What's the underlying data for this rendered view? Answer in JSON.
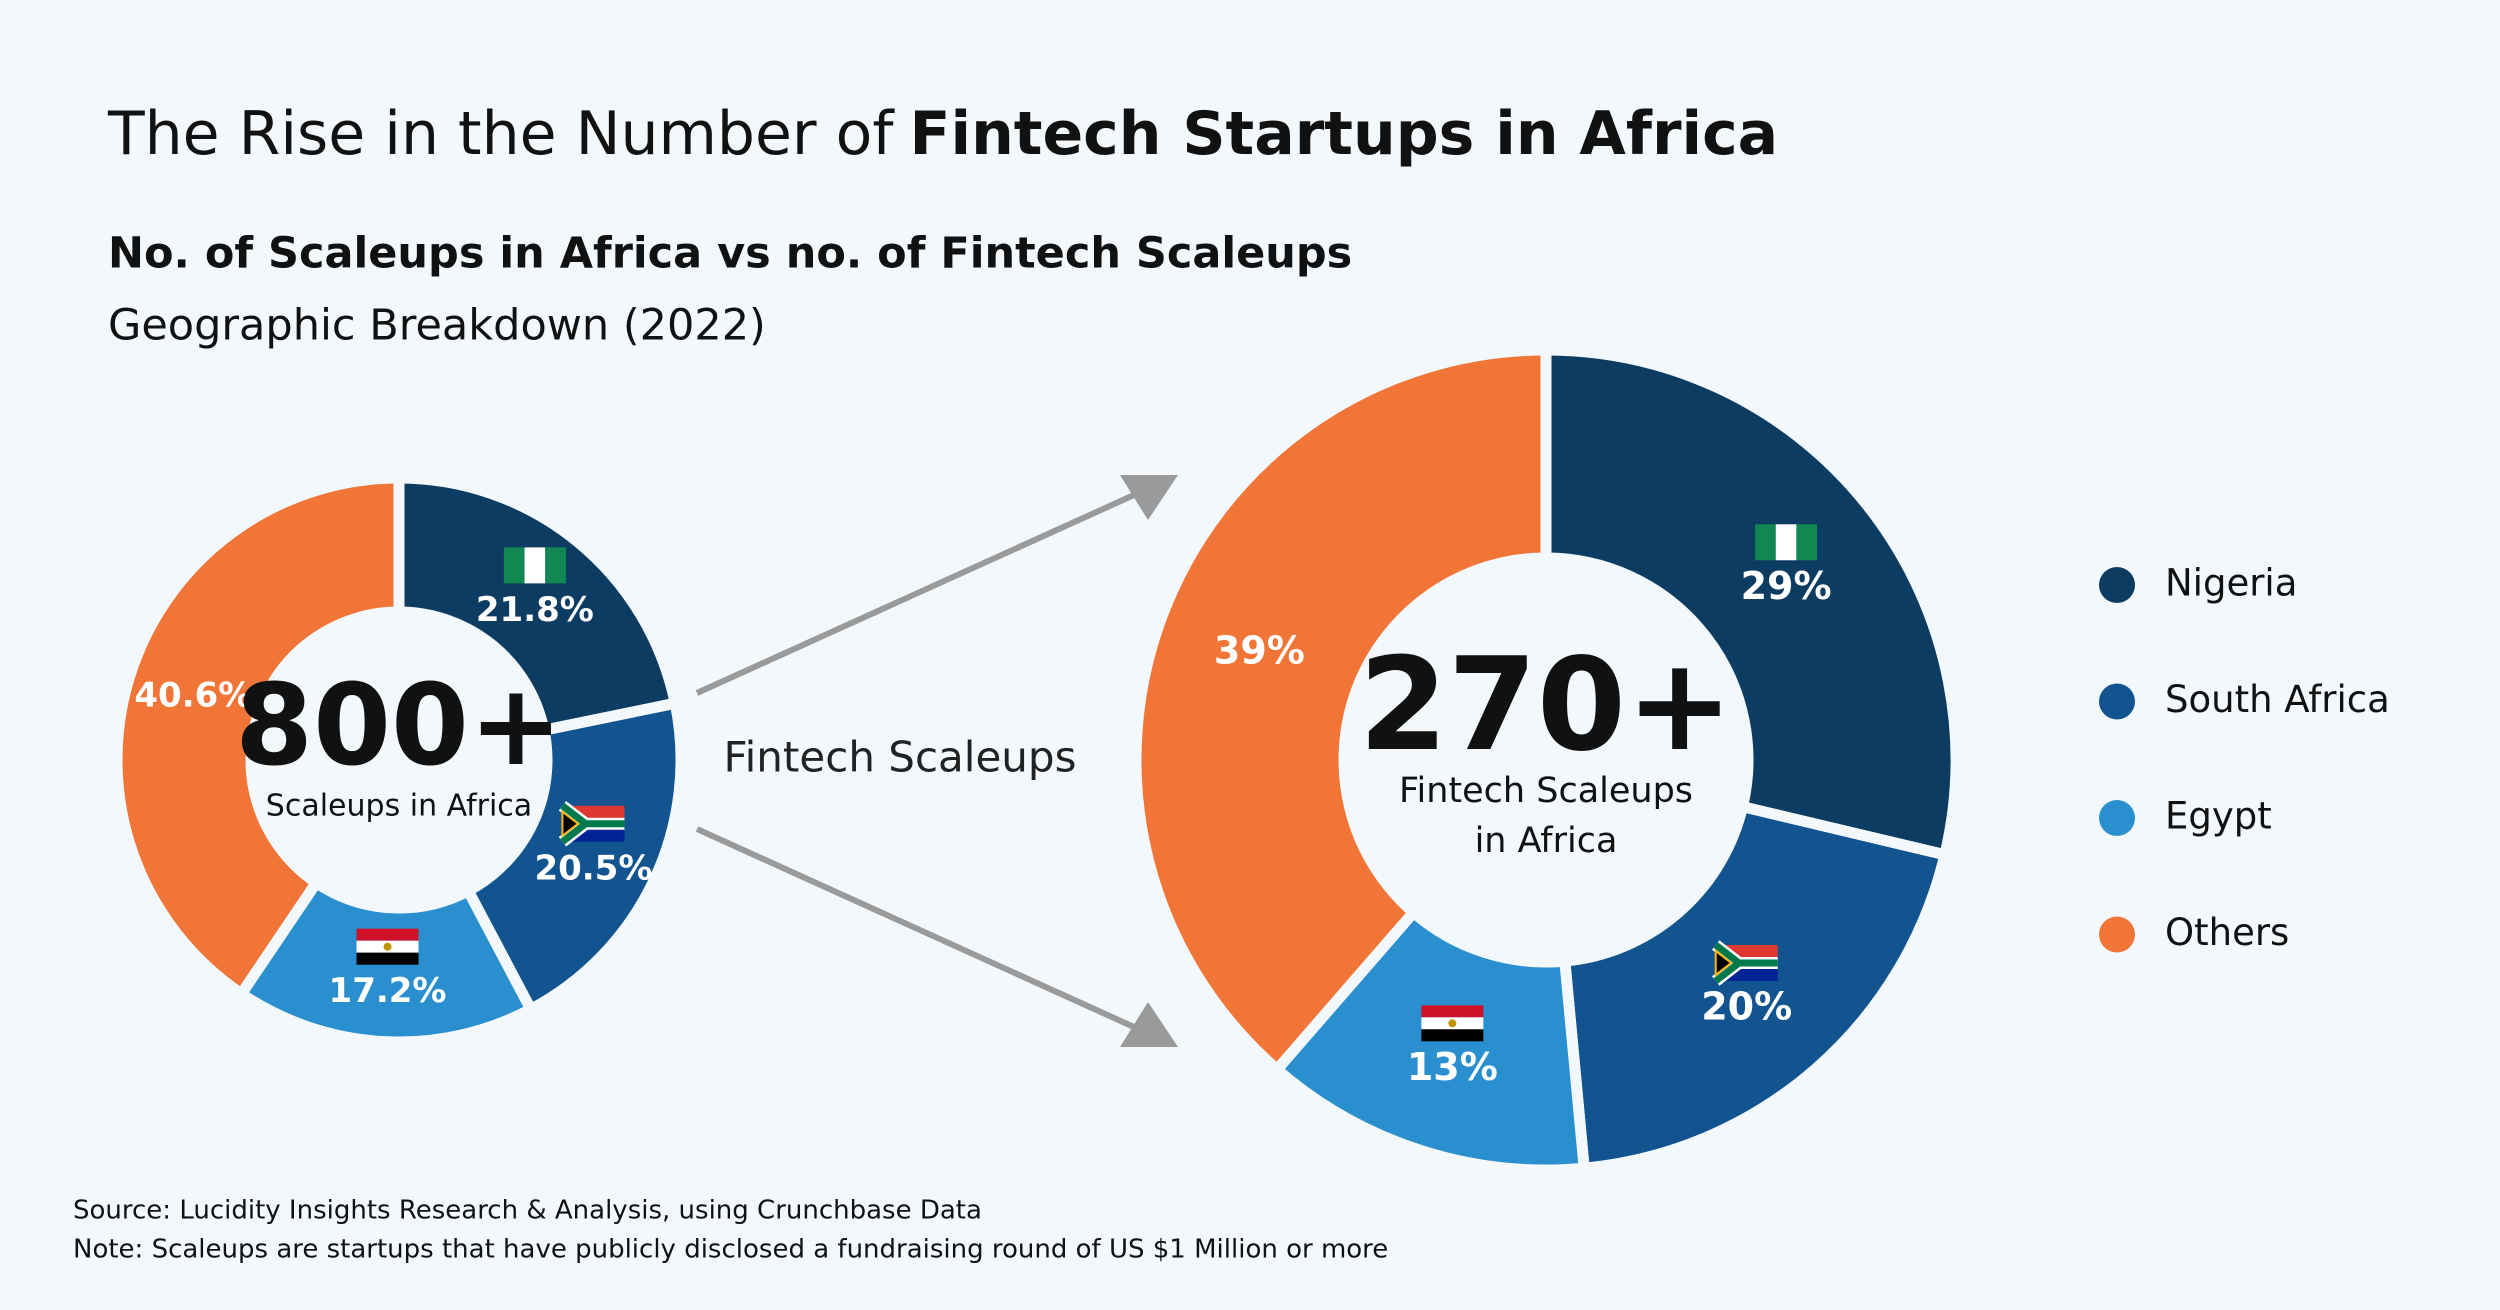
{
  "title": [
    "The Rise in the Number of",
    "Fintech Startups in Africa"
  ],
  "subtitle": "No. of Scaleups in Africa vs no. of Fintech Scaleups",
  "subtitle2": "Geographic Breakdown (2022)",
  "arrow_label": "Fintech Scaleups",
  "chart_data": [
    {
      "type": "pie",
      "center_value": "800+",
      "center_label": [
        "Scaleups in Africa"
      ],
      "categories": [
        "Nigeria",
        "South Africa",
        "Egypt",
        "Others"
      ],
      "values": [
        21.8,
        20.5,
        17.2,
        40.6
      ],
      "value_labels": [
        "21.8%",
        "20.5%",
        "17.2%",
        "40.6%"
      ],
      "colors": [
        "#0d3c63",
        "#12548f",
        "#2a8fce",
        "#f07537"
      ]
    },
    {
      "type": "pie",
      "center_value": "270+",
      "center_label": [
        "Fintech Scaleups",
        "in Africa"
      ],
      "categories": [
        "Nigeria",
        "South Africa",
        "Egypt",
        "Others"
      ],
      "values": [
        29,
        20,
        13,
        39
      ],
      "value_labels": [
        "29%",
        "20%",
        "13%",
        "39%"
      ],
      "colors": [
        "#0d3c63",
        "#12548f",
        "#2a8fce",
        "#f07537"
      ]
    }
  ],
  "source": "Source: Lucidity Insights Research & Analysis, using Crunchbase Data",
  "note": "Note: Scaleups are startups that have publicly disclosed a fundraising round of US $1 Million or more"
}
